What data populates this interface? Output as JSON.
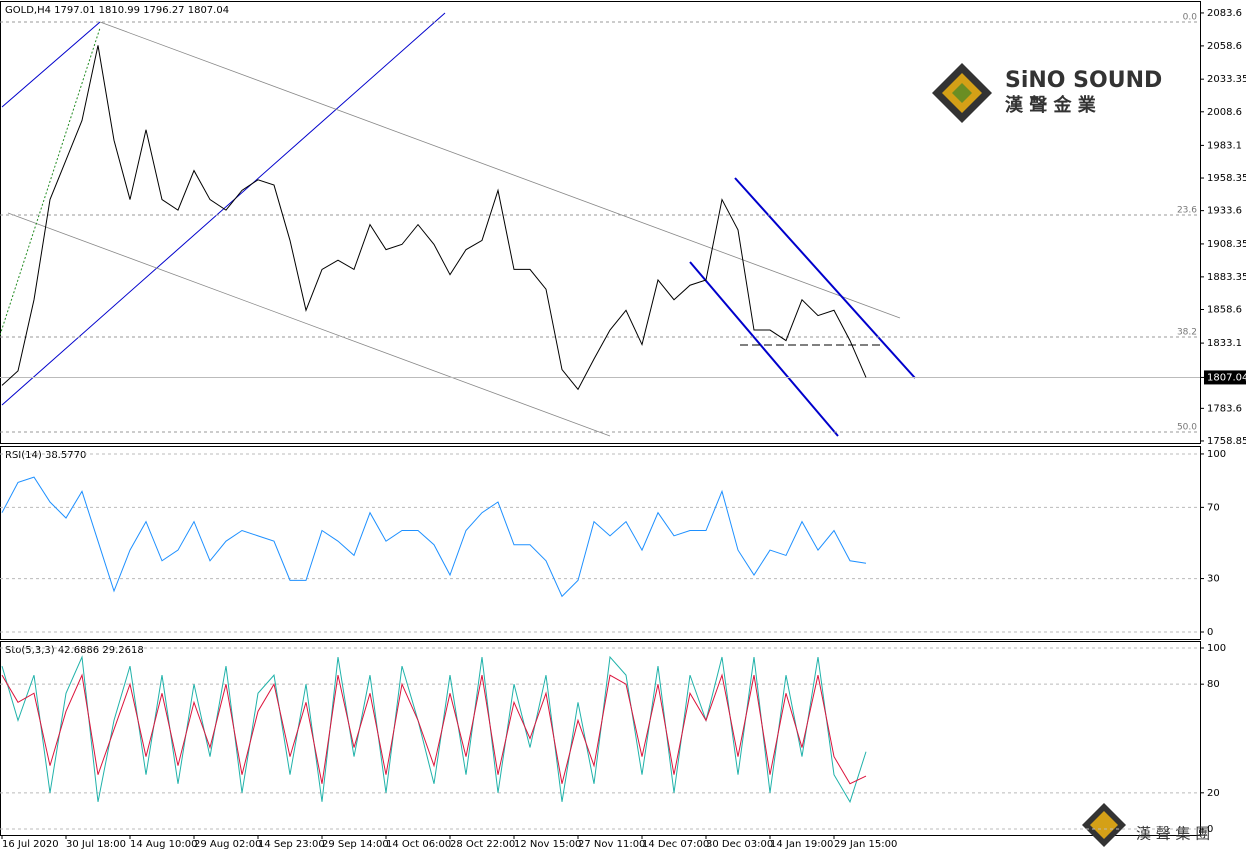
{
  "chart_data": [
    {
      "type": "line",
      "title": "GOLD,H4  1797.01 1810.99 1796.27 1807.04",
      "color": "#000000",
      "values": [
        1801,
        1812,
        1866,
        1942,
        1972,
        2002,
        2059,
        1987,
        1942,
        1995,
        1942,
        1934,
        1964,
        1942,
        1934,
        1949,
        1957,
        1953,
        1911,
        1858,
        1889,
        1896,
        1889,
        1923,
        1904,
        1908,
        1923,
        1908,
        1885,
        1904,
        1911,
        1949,
        1889,
        1889,
        1874,
        1813,
        1798,
        1821,
        1843,
        1858,
        1832,
        1881,
        1866,
        1877,
        1881,
        1942,
        1919,
        1843,
        1843,
        1835,
        1866,
        1854,
        1858,
        1835,
        1807.04
      ],
      "ylim": [
        1757.3,
        2091.9
      ],
      "yticks": [
        2083.6,
        2058.6,
        2033.35,
        2008.6,
        1983.1,
        1958.35,
        1933.6,
        1908.35,
        1883.35,
        1858.6,
        1833.1,
        1807.04,
        1783.6,
        1758.85
      ],
      "fibonacci": [
        {
          "label": "0.0",
          "price": 2076.7
        },
        {
          "label": "23.6",
          "price": 1930.3
        },
        {
          "label": "38.2",
          "price": 1837.7
        },
        {
          "label": "50.0",
          "price": 1765.6
        }
      ]
    },
    {
      "type": "line",
      "title": "RSI(14) 38.5770",
      "color": "#1e90ff",
      "values": [
        67,
        84,
        87,
        73,
        64,
        79,
        51,
        23,
        46,
        62,
        40,
        46,
        62,
        40,
        51,
        57,
        54,
        51,
        29,
        29,
        57,
        51,
        43,
        67,
        51,
        57,
        57,
        49,
        32,
        57,
        67,
        73,
        49,
        49,
        40,
        20,
        29,
        62,
        54,
        62,
        46,
        67,
        54,
        57,
        57,
        79,
        46,
        32,
        46,
        43,
        62,
        46,
        57,
        40,
        38.577
      ],
      "ylim": [
        -4.5,
        103.9
      ],
      "yticks": [
        100,
        70,
        30,
        0
      ]
    },
    {
      "type": "line",
      "title": "Sto(5,3,3) 42.6886 29.2618",
      "series": [
        {
          "color": "#20b2aa",
          "values": [
            90,
            60,
            85,
            20,
            75,
            95,
            15,
            60,
            90,
            30,
            85,
            25,
            80,
            40,
            90,
            20,
            75,
            85,
            30,
            80,
            15,
            95,
            40,
            85,
            20,
            90,
            60,
            25,
            85,
            30,
            95,
            20,
            80,
            45,
            85,
            15,
            70,
            25,
            95,
            85,
            30,
            90,
            20,
            85,
            60,
            95,
            30,
            95,
            20,
            85,
            40,
            95,
            30,
            15,
            42.6886
          ]
        },
        {
          "color": "#dc143c",
          "values": [
            85,
            70,
            75,
            35,
            65,
            85,
            30,
            55,
            80,
            40,
            75,
            35,
            70,
            45,
            80,
            30,
            65,
            80,
            40,
            70,
            25,
            85,
            45,
            75,
            30,
            80,
            60,
            35,
            75,
            40,
            85,
            30,
            70,
            50,
            75,
            25,
            60,
            35,
            85,
            80,
            40,
            80,
            30,
            75,
            60,
            85,
            40,
            85,
            30,
            75,
            45,
            85,
            40,
            25,
            29.2618
          ]
        }
      ],
      "ylim": [
        -3.3,
        103.3
      ],
      "yticks": [
        100,
        80,
        20,
        0
      ],
      "categories": [
        "16 Jul 2020",
        null,
        null,
        null,
        "30 Jul 18:00",
        null,
        null,
        null,
        "14 Aug 10:00",
        null,
        null,
        null,
        "29 Aug 02:00",
        null,
        null,
        null,
        "14 Sep 23:00",
        null,
        null,
        null,
        "29 Sep 14:00",
        null,
        null,
        null,
        "14 Oct 06:00",
        null,
        null,
        null,
        "28 Oct 22:00",
        null,
        null,
        null,
        "12 Nov 15:00",
        null,
        null,
        null,
        "27 Nov 11:00",
        null,
        null,
        null,
        "14 Dec 07:00",
        null,
        null,
        null,
        "30 Dec 03:00",
        null,
        null,
        null,
        "14 Jan 19:00",
        null,
        null,
        null,
        "29 Jan 15:00",
        null,
        null
      ]
    }
  ],
  "logo": {
    "name": "SiNO SOUND",
    "subtitle": "漢 聲 金 業"
  },
  "footer": {
    "brand": "漢 聲 集 團"
  }
}
